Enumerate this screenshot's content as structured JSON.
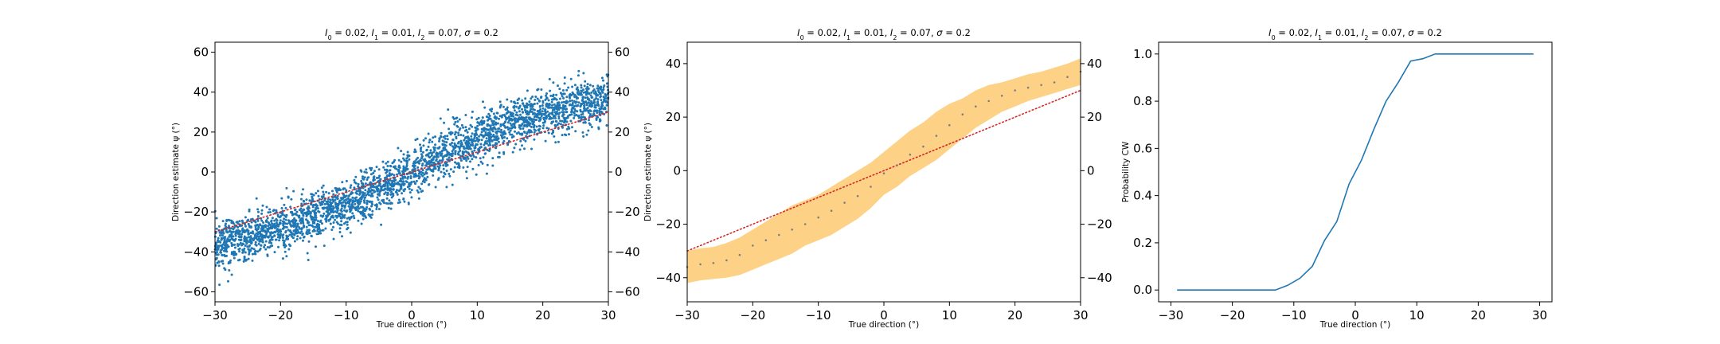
{
  "colors": {
    "scatter": "#1f77b4",
    "identity": "#d62728",
    "band": "#fdd287",
    "means": "#7f7f7f",
    "curve": "#1f77b4"
  },
  "chart_data": [
    {
      "type": "scatter",
      "title": "I_0 = 0.02, I_1 = 0.01, I_2 = 0.07, σ = 0.2",
      "title_parts": {
        "i0": "0.02",
        "i1": "0.01",
        "i2": "0.07",
        "sigma": "0.2"
      },
      "xlabel": "True direction (°)",
      "ylabel": "Direction estimate ψ (°)",
      "xlim": [
        -30,
        30
      ],
      "ylim": [
        -65,
        65
      ],
      "xticks": [
        "−30",
        "−20",
        "−10",
        "0",
        "10",
        "20",
        "30"
      ],
      "yticks": [
        "−60",
        "−40",
        "−20",
        "0",
        "20",
        "40",
        "60"
      ],
      "right_axis_ticks": true,
      "reference_line": {
        "x": [
          -30,
          30
        ],
        "y": [
          -30,
          30
        ],
        "style": "dotted"
      },
      "series": [
        {
          "kind": "trend",
          "x": [
            -30,
            -25,
            -20,
            -15,
            -10,
            -5,
            0,
            5,
            10,
            15,
            20,
            25,
            30
          ],
          "mean": [
            -36,
            -33,
            -28,
            -23,
            -17,
            -9,
            0,
            9,
            17,
            24,
            29,
            33,
            36
          ],
          "spread_sd": 6,
          "n_points": 3000
        }
      ]
    },
    {
      "type": "line",
      "title": "I_0 = 0.02, I_1 = 0.01, I_2 = 0.07, σ = 0.2",
      "title_parts": {
        "i0": "0.02",
        "i1": "0.01",
        "i2": "0.07",
        "sigma": "0.2"
      },
      "xlabel": "True direction (°)",
      "ylabel": "Direction estimate ψ (°)",
      "xlim": [
        -30,
        30
      ],
      "ylim": [
        -49,
        48
      ],
      "xticks": [
        "−30",
        "−20",
        "−10",
        "0",
        "10",
        "20",
        "30"
      ],
      "yticks": [
        "−40",
        "−20",
        "0",
        "20",
        "40"
      ],
      "right_axis_ticks": true,
      "reference_line": {
        "x": [
          -30,
          30
        ],
        "y": [
          -30,
          30
        ],
        "style": "dotted"
      },
      "series": [
        {
          "kind": "band_with_means",
          "x": [
            -30,
            -28,
            -26,
            -24,
            -22,
            -20,
            -18,
            -16,
            -14,
            -12,
            -10,
            -8,
            -6,
            -4,
            -2,
            0,
            2,
            4,
            6,
            8,
            10,
            12,
            14,
            16,
            18,
            20,
            22,
            24,
            26,
            28,
            30
          ],
          "mean": [
            -36,
            -35,
            -34.5,
            -33.5,
            -31.5,
            -28,
            -26,
            -24,
            -22,
            -20,
            -17.5,
            -15,
            -12,
            -9.5,
            -6,
            -1,
            2,
            6,
            9,
            13,
            17,
            21,
            24,
            26,
            28,
            30,
            31,
            32,
            33,
            35,
            37
          ],
          "lower": [
            -42,
            -41,
            -40.5,
            -40,
            -39,
            -37,
            -35,
            -33,
            -31,
            -28,
            -26,
            -24,
            -21,
            -18,
            -14,
            -9,
            -6,
            -2,
            1,
            4,
            8,
            12,
            16,
            19,
            22,
            24,
            26,
            27.5,
            29,
            30.5,
            32
          ],
          "upper": [
            -30,
            -29,
            -28.5,
            -27,
            -25,
            -22,
            -19,
            -16,
            -13,
            -11,
            -9,
            -6,
            -3,
            0,
            3,
            7,
            11,
            15,
            18,
            22,
            25,
            27,
            30,
            32,
            33,
            34.5,
            36,
            37,
            38.5,
            40,
            42
          ]
        }
      ]
    },
    {
      "type": "line",
      "title": "I_0 = 0.02, I_1 = 0.01, I_2 = 0.07, σ = 0.2",
      "title_parts": {
        "i0": "0.02",
        "i1": "0.01",
        "i2": "0.07",
        "sigma": "0.2"
      },
      "xlabel": "True direction (°)",
      "ylabel": "Probability CW",
      "xlim": [
        -32,
        32
      ],
      "ylim": [
        -0.05,
        1.05
      ],
      "xticks": [
        "−30",
        "−20",
        "−10",
        "0",
        "10",
        "20",
        "30"
      ],
      "yticks": [
        "0.0",
        "0.2",
        "0.4",
        "0.6",
        "0.8",
        "1.0"
      ],
      "right_axis_ticks": false,
      "series": [
        {
          "kind": "line",
          "x": [
            -29,
            -27,
            -25,
            -23,
            -21,
            -19,
            -17,
            -15,
            -13,
            -11,
            -9,
            -7,
            -5,
            -3,
            -1,
            1,
            3,
            5,
            7,
            9,
            11,
            13,
            15,
            17,
            19,
            21,
            23,
            25,
            27,
            29
          ],
          "y": [
            0,
            0,
            0,
            0,
            0,
            0,
            0,
            0,
            0,
            0.02,
            0.05,
            0.1,
            0.21,
            0.29,
            0.45,
            0.55,
            0.68,
            0.8,
            0.88,
            0.97,
            0.98,
            1,
            1,
            1,
            1,
            1,
            1,
            1,
            1,
            1
          ]
        }
      ]
    }
  ]
}
